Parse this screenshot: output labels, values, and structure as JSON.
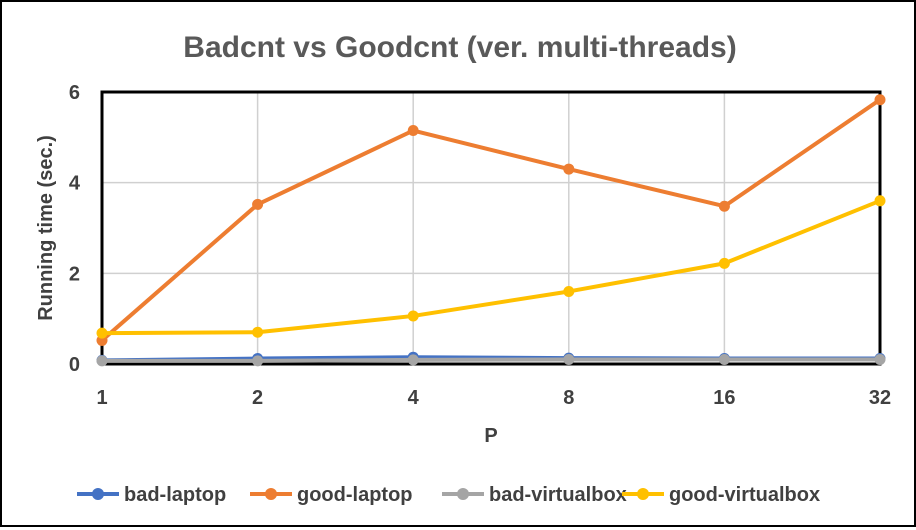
{
  "chart_data": {
    "type": "line",
    "title": "Badcnt vs Goodcnt (ver. multi-threads)",
    "xlabel": "P",
    "ylabel": "Running time (sec.)",
    "categories": [
      "1",
      "2",
      "4",
      "8",
      "16",
      "32"
    ],
    "ylim": [
      0,
      6
    ],
    "yticks": [
      "0",
      "2",
      "4",
      "6"
    ],
    "grid": true,
    "legend_position": "bottom",
    "series": [
      {
        "name": "bad-laptop",
        "color": "#4472C4",
        "values": [
          0.08,
          0.12,
          0.15,
          0.13,
          0.12,
          0.12
        ]
      },
      {
        "name": "good-laptop",
        "color": "#ED7D31",
        "values": [
          0.52,
          3.52,
          5.15,
          4.3,
          3.48,
          5.83
        ]
      },
      {
        "name": "bad-virtualbox",
        "color": "#A5A5A5",
        "values": [
          0.07,
          0.07,
          0.09,
          0.1,
          0.1,
          0.1
        ]
      },
      {
        "name": "good-virtualbox",
        "color": "#FFC000",
        "values": [
          0.68,
          0.7,
          1.06,
          1.6,
          2.22,
          3.6
        ]
      }
    ]
  }
}
